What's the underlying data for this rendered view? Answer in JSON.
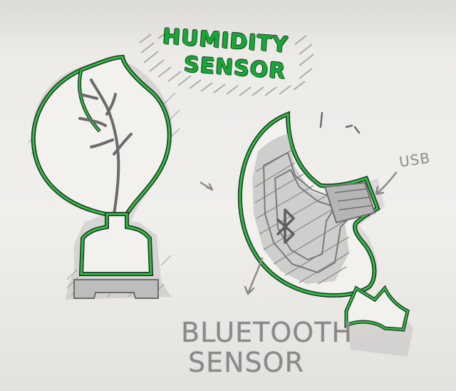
{
  "title": {
    "line1": "HUMIDITY",
    "line2": "SENSOR"
  },
  "labels": {
    "usb": "USB",
    "bluetooth_line1": "BLUETOOTH",
    "bluetooth_line2": "SENSOR"
  },
  "colors": {
    "paper": "#ecebe8",
    "accent_green": "#17a838",
    "pencil_grey": "#8a8a8a",
    "outline_dark": "#2a2a2a"
  },
  "icons": {
    "bluetooth": "bluetooth-icon",
    "plant": "leaf-plant-icon"
  }
}
